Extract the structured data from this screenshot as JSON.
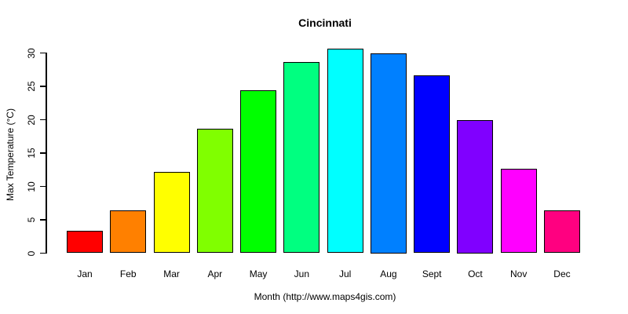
{
  "title": "Cincinnati",
  "chart_data": {
    "type": "bar",
    "title": "Cincinnati",
    "xlabel": "Month (http://www.maps4gis.com)",
    "ylabel": "Max Temperature (°C)",
    "categories": [
      "Jan",
      "Feb",
      "Mar",
      "Apr",
      "May",
      "Jun",
      "Jul",
      "Aug",
      "Sept",
      "Oct",
      "Nov",
      "Dec"
    ],
    "values": [
      3.4,
      6.4,
      12.2,
      18.6,
      24.4,
      28.7,
      30.7,
      30.0,
      26.6,
      20.0,
      12.7,
      6.4
    ],
    "bar_colors": [
      "#FF0000",
      "#FF8000",
      "#FFFF00",
      "#80FF00",
      "#00FF00",
      "#00FF80",
      "#00FFFF",
      "#0080FF",
      "#0000FF",
      "#8000FF",
      "#FF00FF",
      "#FF0080"
    ],
    "bar_border_color": "#000000",
    "ylim": [
      0,
      30
    ],
    "yticks": [
      0,
      5,
      10,
      15,
      20,
      25,
      30
    ],
    "grid": false,
    "legend": "none",
    "background_color": "#FFFFFF",
    "text_color": "#000000"
  }
}
